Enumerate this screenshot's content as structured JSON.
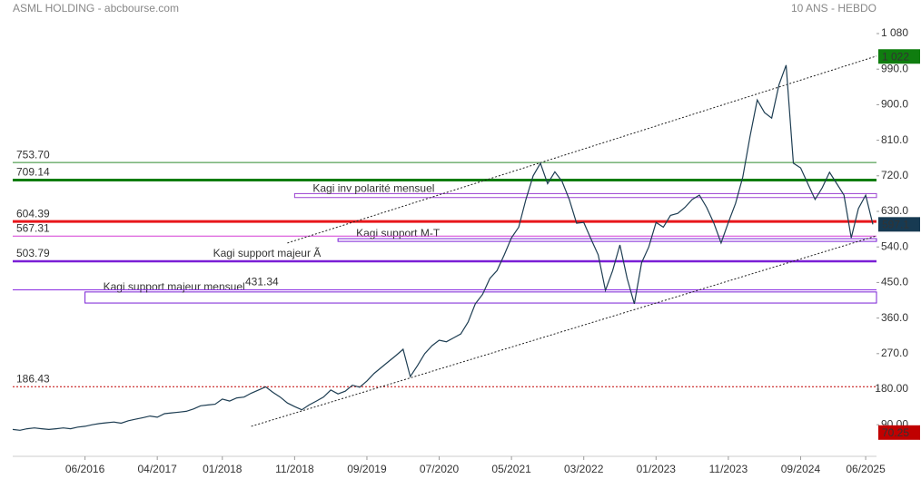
{
  "chart_data": {
    "type": "line",
    "title": "ASML HOLDING - abcbourse.com",
    "subtitle": "10 ANS - HEBDO",
    "xlim": [
      "2015-08",
      "2025-08"
    ],
    "ylim": [
      17,
      1119
    ],
    "xticks": [
      {
        "value": "2016-06",
        "label": "06/2016"
      },
      {
        "value": "2017-04",
        "label": "04/2017"
      },
      {
        "value": "2018-01",
        "label": "01/2018"
      },
      {
        "value": "2018-11",
        "label": "11/2018"
      },
      {
        "value": "2019-09",
        "label": "09/2019"
      },
      {
        "value": "2020-07",
        "label": "07/2020"
      },
      {
        "value": "2021-05",
        "label": "05/2021"
      },
      {
        "value": "2022-03",
        "label": "03/2022"
      },
      {
        "value": "2023-01",
        "label": "01/2023"
      },
      {
        "value": "2023-11",
        "label": "11/2023"
      },
      {
        "value": "2024-09",
        "label": "09/2024"
      },
      {
        "value": "2025-06",
        "label": "06/2025"
      }
    ],
    "yticks": [
      {
        "value": 1080,
        "label": "1 080"
      },
      {
        "value": 990,
        "label": "990.0"
      },
      {
        "value": 900,
        "label": "900.0"
      },
      {
        "value": 810,
        "label": "810.0"
      },
      {
        "value": 720,
        "label": "720.0"
      },
      {
        "value": 630,
        "label": "630.0"
      },
      {
        "value": 540,
        "label": "540.0"
      },
      {
        "value": 450,
        "label": "450.0"
      },
      {
        "value": 360,
        "label": "360.0"
      },
      {
        "value": 270,
        "label": "270.0"
      },
      {
        "value": 180,
        "label": "180.00"
      },
      {
        "value": 90,
        "label": "90.00"
      }
    ],
    "x": [
      "2015-08",
      "2015-09",
      "2015-10",
      "2015-11",
      "2015-12",
      "2016-01",
      "2016-02",
      "2016-03",
      "2016-04",
      "2016-05",
      "2016-06",
      "2016-07",
      "2016-08",
      "2016-09",
      "2016-10",
      "2016-11",
      "2016-12",
      "2017-01",
      "2017-02",
      "2017-03",
      "2017-04",
      "2017-05",
      "2017-06",
      "2017-07",
      "2017-08",
      "2017-09",
      "2017-10",
      "2017-11",
      "2017-12",
      "2018-01",
      "2018-02",
      "2018-03",
      "2018-04",
      "2018-05",
      "2018-06",
      "2018-07",
      "2018-08",
      "2018-09",
      "2018-10",
      "2018-11",
      "2018-12",
      "2019-01",
      "2019-02",
      "2019-03",
      "2019-04",
      "2019-05",
      "2019-06",
      "2019-07",
      "2019-08",
      "2019-09",
      "2019-10",
      "2019-11",
      "2019-12",
      "2020-01",
      "2020-02",
      "2020-03",
      "2020-04",
      "2020-05",
      "2020-06",
      "2020-07",
      "2020-08",
      "2020-09",
      "2020-10",
      "2020-11",
      "2020-12",
      "2021-01",
      "2021-02",
      "2021-03",
      "2021-04",
      "2021-05",
      "2021-06",
      "2021-07",
      "2021-08",
      "2021-09",
      "2021-10",
      "2021-11",
      "2021-12",
      "2022-01",
      "2022-02",
      "2022-03",
      "2022-04",
      "2022-05",
      "2022-06",
      "2022-07",
      "2022-08",
      "2022-09",
      "2022-10",
      "2022-11",
      "2022-12",
      "2023-01",
      "2023-02",
      "2023-03",
      "2023-04",
      "2023-05",
      "2023-06",
      "2023-07",
      "2023-08",
      "2023-09",
      "2023-10",
      "2023-11",
      "2023-12",
      "2024-01",
      "2024-02",
      "2024-03",
      "2024-04",
      "2024-05",
      "2024-06",
      "2024-07",
      "2024-08",
      "2024-09",
      "2024-10",
      "2024-11",
      "2024-12",
      "2025-01",
      "2025-02",
      "2025-03",
      "2025-04",
      "2025-05",
      "2025-06",
      "2025-07"
    ],
    "series": [
      {
        "color": "#1d3d52",
        "values": [
          78,
          76,
          80,
          82,
          80,
          78,
          80,
          82,
          80,
          84,
          86,
          90,
          93,
          95,
          97,
          94,
          100,
          104,
          108,
          112,
          109,
          118,
          120,
          122,
          124,
          130,
          138,
          140,
          142,
          155,
          150,
          158,
          160,
          170,
          178,
          186,
          172,
          160,
          145,
          136,
          128,
          140,
          150,
          160,
          178,
          168,
          175,
          190,
          185,
          201,
          220,
          235,
          250,
          265,
          281,
          212,
          240,
          270,
          290,
          304,
          300,
          310,
          320,
          350,
          396,
          420,
          460,
          480,
          520,
          563,
          590,
          660,
          720,
          752,
          700,
          730,
          706,
          660,
          600,
          602,
          560,
          520,
          430,
          480,
          545,
          460,
          396,
          500,
          540,
          602,
          590,
          620,
          625,
          640,
          660,
          671,
          640,
          600,
          550,
          602,
          650,
          717,
          820,
          912,
          880,
          866,
          950,
          1000,
          752,
          740,
          700,
          660,
          690,
          729,
          700,
          671,
          563,
          637,
          671,
          597.1
        ]
      }
    ],
    "levels": [
      {
        "value": 753.7,
        "label": "753.70",
        "color": "#2e8b2e",
        "width": 1,
        "dash": false
      },
      {
        "value": 709.14,
        "label": "709.14",
        "color": "#0f7d0f",
        "width": 3,
        "dash": false
      },
      {
        "value": 604.39,
        "label": "604.39",
        "color": "#e8161b",
        "width": 3,
        "dash": false
      },
      {
        "value": 567.31,
        "label": "567.31",
        "color": "#d63fd6",
        "width": 1,
        "dash": false
      },
      {
        "value": 503.79,
        "label": "503.79",
        "color": "#7a1fd6",
        "width": 2.5,
        "dash": false
      },
      {
        "value": 431.34,
        "label": "431.34",
        "color": "#8a2be2",
        "width": 1,
        "dash": false
      },
      {
        "value": 186.43,
        "label": "186.43",
        "color": "#c00000",
        "width": 1,
        "dash": true
      }
    ],
    "zones": [
      {
        "label": "Kagi inv polarité mensuel",
        "start": "2018-11",
        "range": [
          665,
          675
        ],
        "color": "#9a40d0"
      },
      {
        "label": "Kagi support M-T",
        "start": "2019-05",
        "range": [
          554,
          561
        ],
        "color": "#7a1fd6"
      },
      {
        "label": "Kagi support majeur mensuel",
        "start": "2016-06",
        "range": [
          398,
          426
        ],
        "color": "#7a1fd6"
      }
    ],
    "annotations": [
      {
        "label": "Kagi support majeur Ã",
        "value": 503.79,
        "x": "2018-06",
        "color": "#7a1fd6"
      }
    ],
    "trendlines": [
      {
        "x": [
          "2018-10",
          "2025-08"
        ],
        "values": [
          550,
          1023
        ]
      },
      {
        "x": [
          "2018-05",
          "2025-08"
        ],
        "values": [
          86,
          568
        ]
      }
    ],
    "badges": [
      {
        "value": 1022,
        "label": "1 022",
        "color": "#0f7d0f"
      },
      {
        "value": 597.1,
        "label": "597.1",
        "color": "#173a52"
      },
      {
        "value": 70.25,
        "label": "70.25",
        "color": "#c00000"
      }
    ]
  }
}
